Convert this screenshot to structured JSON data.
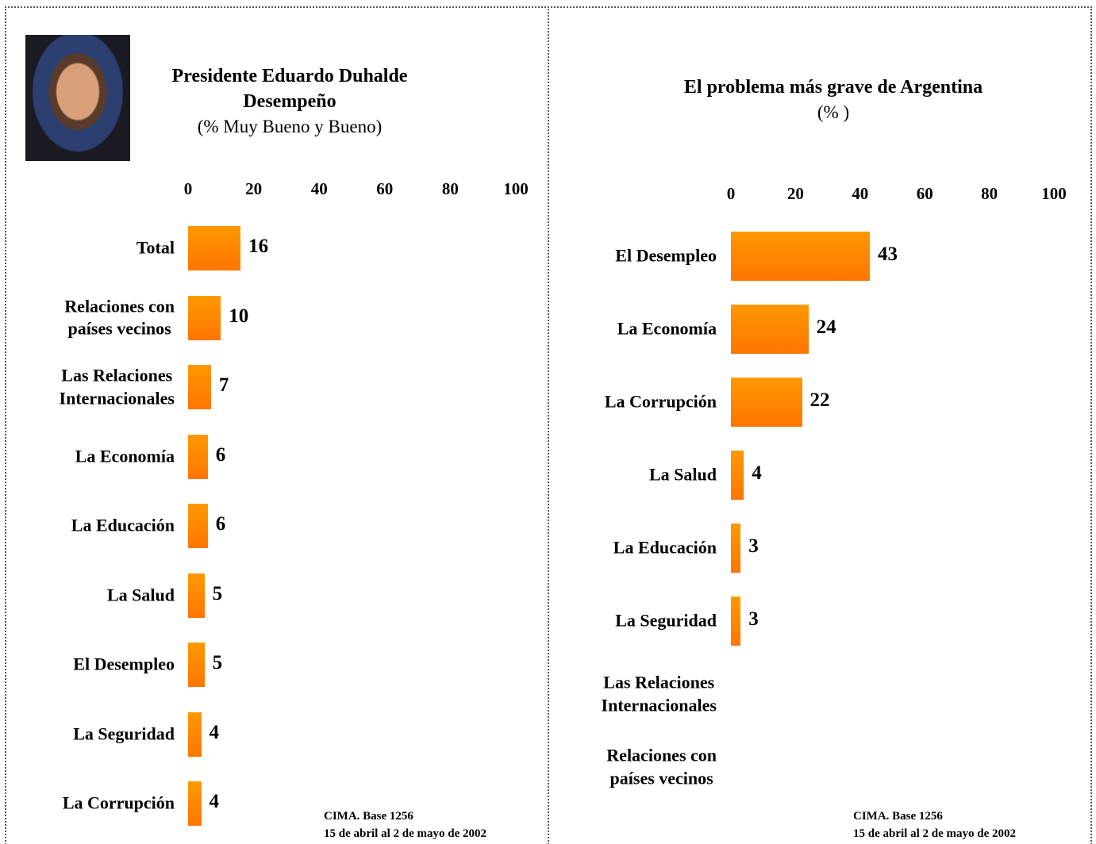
{
  "chart_data": [
    {
      "type": "bar",
      "orientation": "horizontal",
      "title": "Presidente Eduardo Duhalde\nDesempeño",
      "subtitle": "(% Muy Bueno y Bueno)",
      "categories": [
        "Total",
        "Relaciones con\npaíses vecinos",
        "Las Relaciones\nInternacionales",
        "La Economía",
        "La Educación",
        "La Salud",
        "El Desempleo",
        "La Seguridad",
        "La Corrupción"
      ],
      "values": [
        16,
        10,
        7,
        6,
        6,
        5,
        5,
        4,
        4
      ],
      "color": "#ff7f00",
      "xlim": [
        0,
        100
      ],
      "xticks": [
        0,
        20,
        40,
        60,
        80,
        100
      ],
      "source": [
        "CIMA. Base 1256",
        "15 de abril al 2 de mayo de 2002"
      ]
    },
    {
      "type": "bar",
      "orientation": "horizontal",
      "title": "El problema más grave de Argentina",
      "subtitle": "(% )",
      "categories": [
        "El Desempleo",
        "La Economía",
        "La Corrupción",
        "La Salud",
        "La Educación",
        "La Seguridad",
        "Las Relaciones\nInternacionales",
        "Relaciones con\npaíses vecinos"
      ],
      "values": [
        43,
        24,
        22,
        4,
        3,
        3,
        null,
        null
      ],
      "color": "#ff7f00",
      "xlim": [
        0,
        100
      ],
      "xticks": [
        0,
        20,
        40,
        60,
        80,
        100
      ],
      "source": [
        "CIMA. Base 1256",
        "15 de abril al 2 de mayo de 2002"
      ]
    }
  ]
}
